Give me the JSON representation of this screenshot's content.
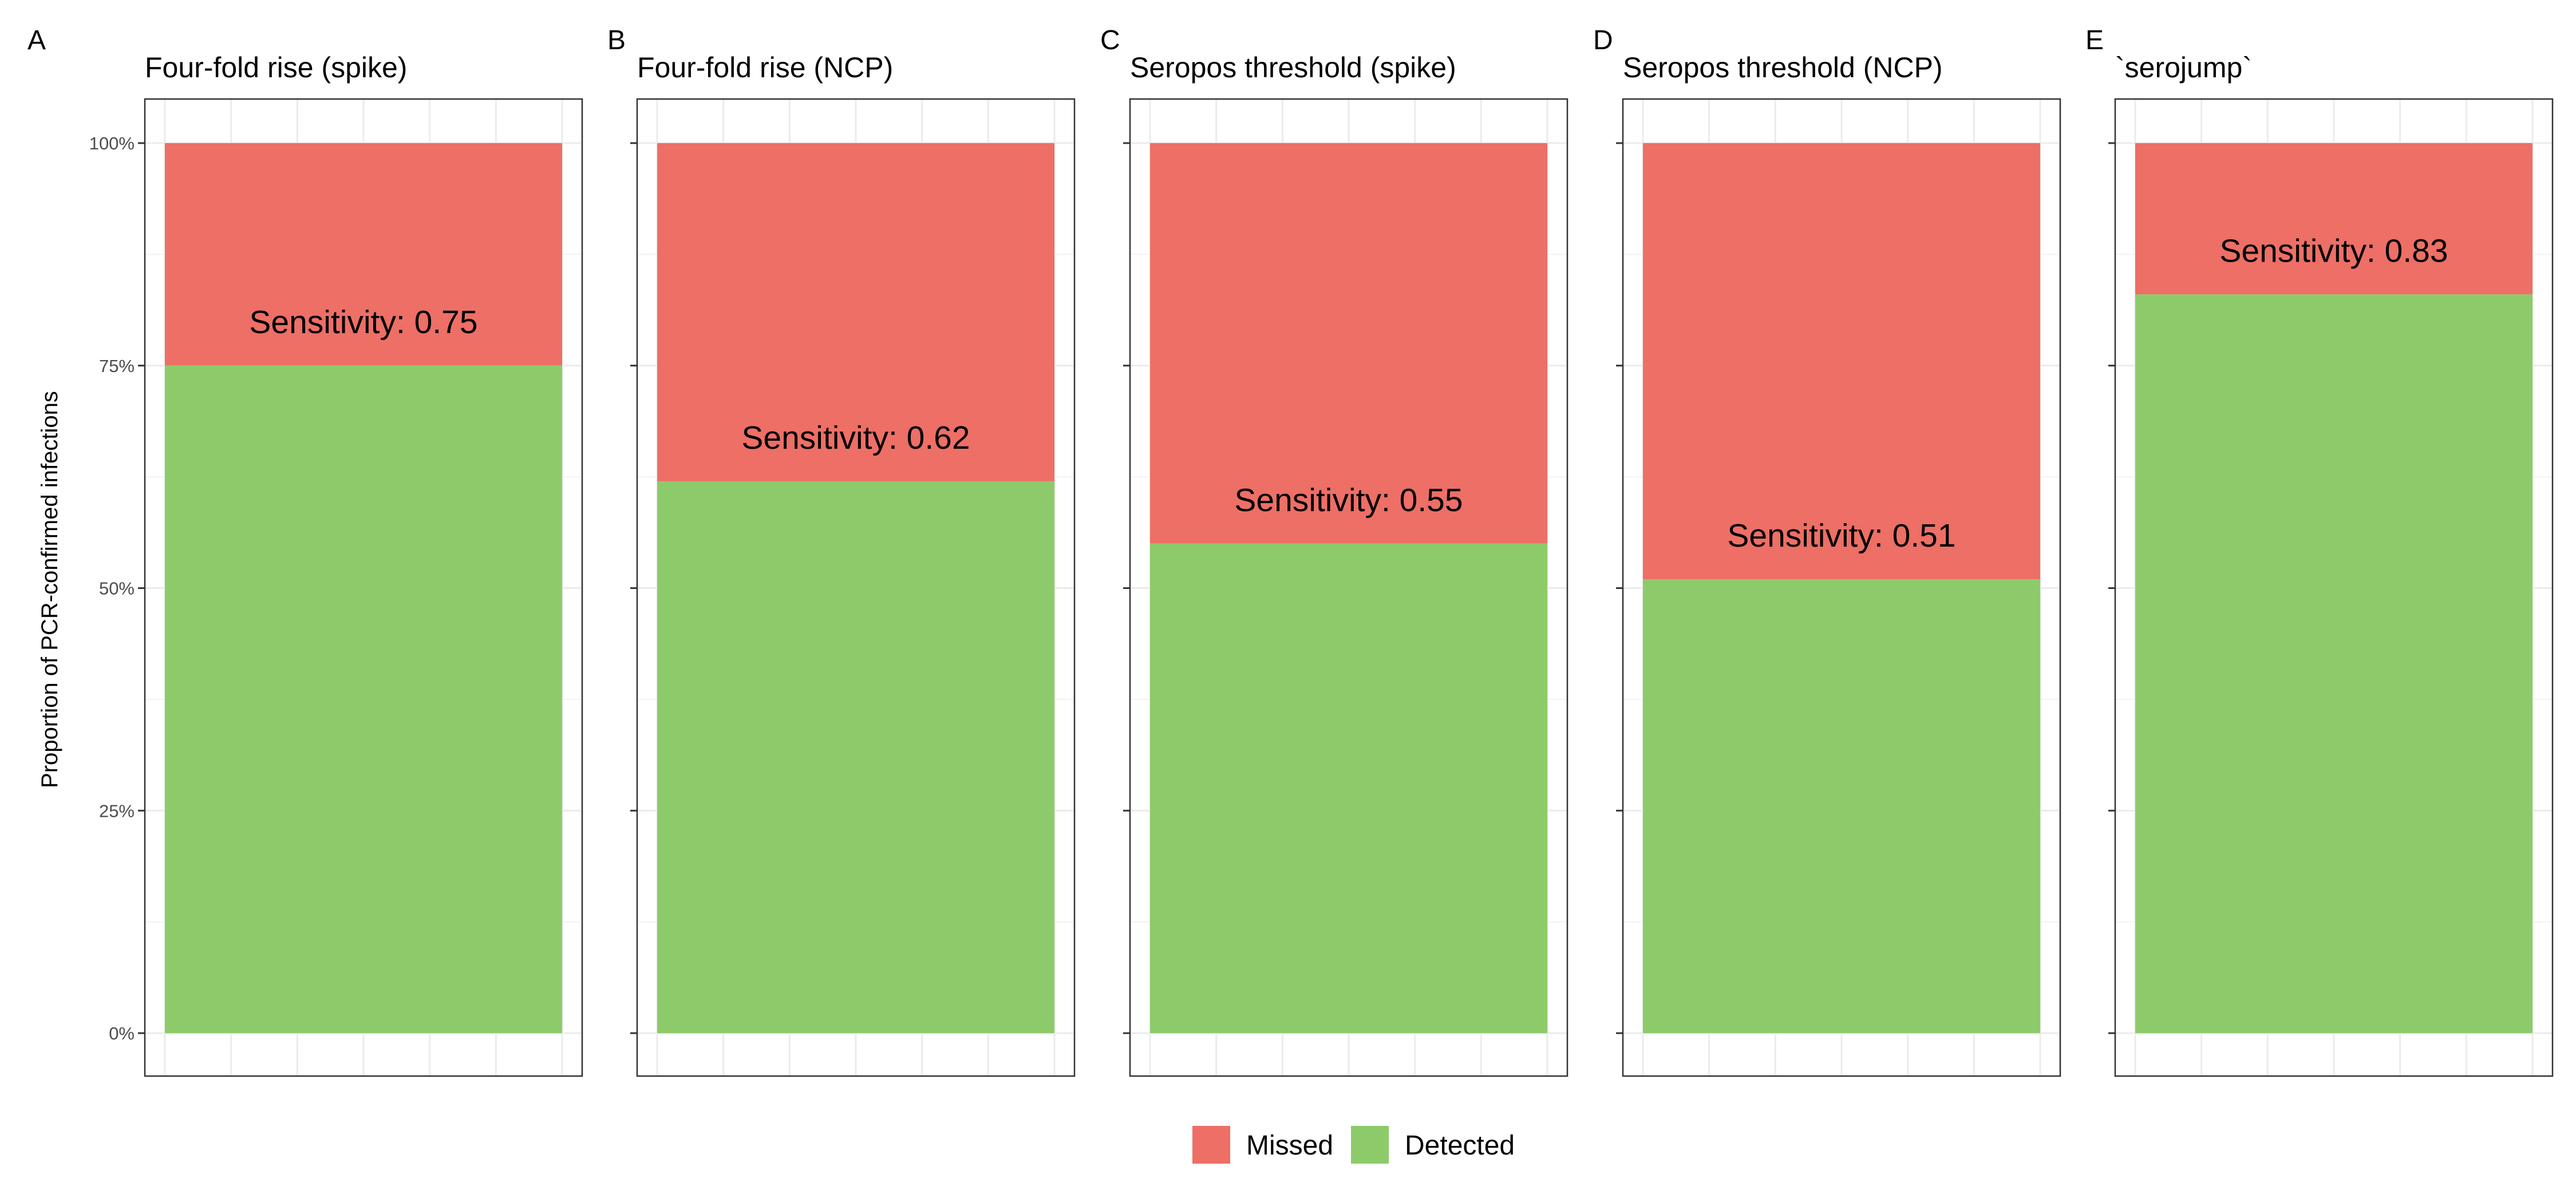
{
  "chart_data": {
    "type": "bar",
    "stacked": true,
    "y_axis_label": "Proportion of PCR-confirmed infections",
    "y_ticks": [
      "0%",
      "25%",
      "50%",
      "75%",
      "100%"
    ],
    "ylim": [
      0,
      1
    ],
    "grid": true,
    "legend_position": "bottom",
    "legend": [
      {
        "name": "Missed",
        "color": "#ED6F66"
      },
      {
        "name": "Detected",
        "color": "#8DCB6A"
      }
    ],
    "panels": [
      {
        "tag": "A",
        "title": "Four-fold rise (spike)",
        "sensitivity": 0.75,
        "label": "Sensitivity: 0.75"
      },
      {
        "tag": "B",
        "title": "Four-fold rise (NCP)",
        "sensitivity": 0.62,
        "label": "Sensitivity: 0.62"
      },
      {
        "tag": "C",
        "title": "Seropos threshold (spike)",
        "sensitivity": 0.55,
        "label": "Sensitivity: 0.55"
      },
      {
        "tag": "D",
        "title": "Seropos threshold (NCP)",
        "sensitivity": 0.51,
        "label": "Sensitivity: 0.51"
      },
      {
        "tag": "E",
        "title": "`serojump`",
        "sensitivity": 0.83,
        "label": "Sensitivity: 0.83"
      }
    ]
  }
}
